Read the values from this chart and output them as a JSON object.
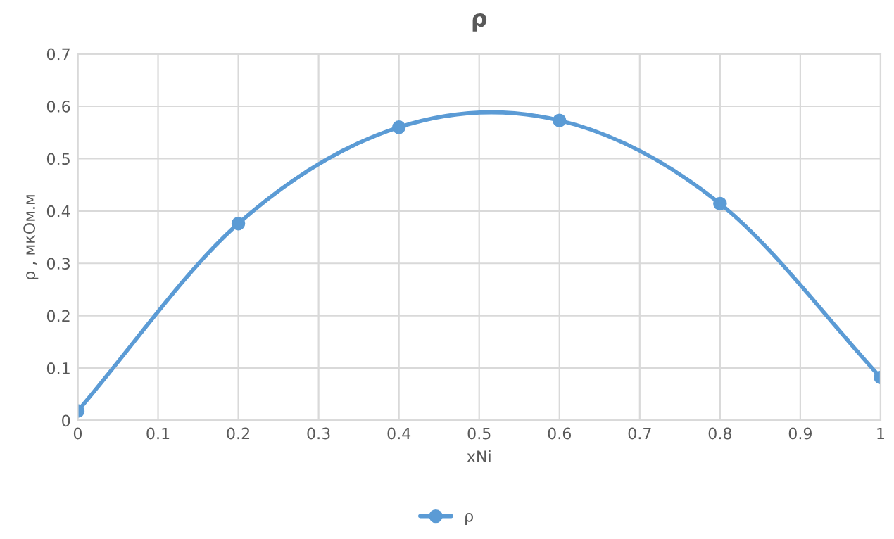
{
  "chart_data": {
    "type": "line",
    "title": "ρ",
    "xlabel": "xNi",
    "ylabel": "ρ , мкОм.м",
    "x": [
      0,
      0.2,
      0.4,
      0.6,
      0.8,
      1
    ],
    "series": [
      {
        "name": "ρ",
        "color": "#5b9bd5",
        "values": [
          0.018,
          0.376,
          0.56,
          0.573,
          0.414,
          0.082
        ]
      }
    ],
    "xlim": [
      0,
      1
    ],
    "xticks": [
      0,
      0.1,
      0.2,
      0.3,
      0.4,
      0.5,
      0.6,
      0.7,
      0.8,
      0.9,
      1
    ],
    "ylim": [
      0,
      0.7
    ],
    "yticks": [
      0,
      0.1,
      0.2,
      0.3,
      0.4,
      0.5,
      0.6,
      0.7
    ],
    "grid": true,
    "legend": "bottom",
    "marker": "circle",
    "line_style": "solid"
  }
}
